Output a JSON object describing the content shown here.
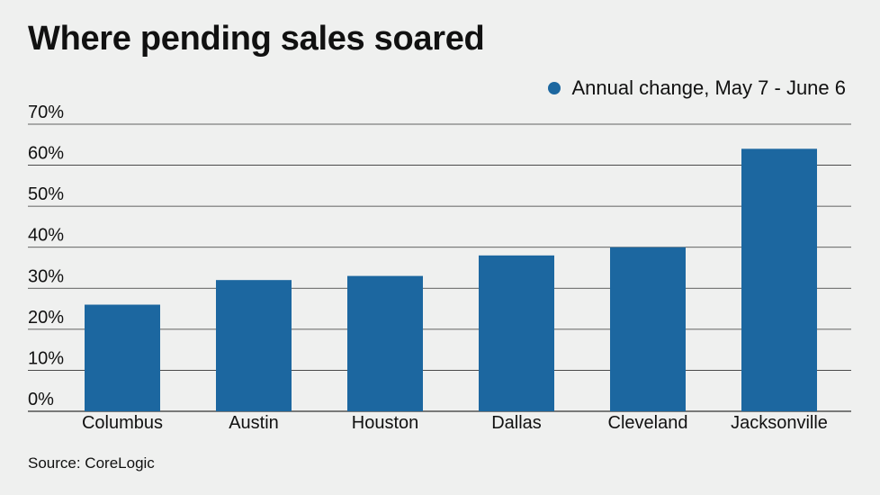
{
  "chart_data": {
    "type": "bar",
    "title": "Where pending sales soared",
    "categories": [
      "Columbus",
      "Austin",
      "Houston",
      "Dallas",
      "Cleveland",
      "Jacksonville"
    ],
    "series": [
      {
        "name": "Annual change, May 7 - June 6",
        "values": [
          26,
          32,
          33,
          38,
          40,
          64
        ],
        "color": "#1c67a0"
      }
    ],
    "yticks": [
      "0%",
      "10%",
      "20%",
      "30%",
      "40%",
      "50%",
      "60%",
      "70%"
    ],
    "ylim": [
      0,
      70
    ],
    "xlabel": "",
    "ylabel": "",
    "grid": true,
    "legend_position": "top-right",
    "source": "Source: CoreLogic"
  },
  "colors": {
    "background": "#eff0ef",
    "bar": "#1c67a0",
    "gridline": "#333333",
    "text": "#111111"
  }
}
